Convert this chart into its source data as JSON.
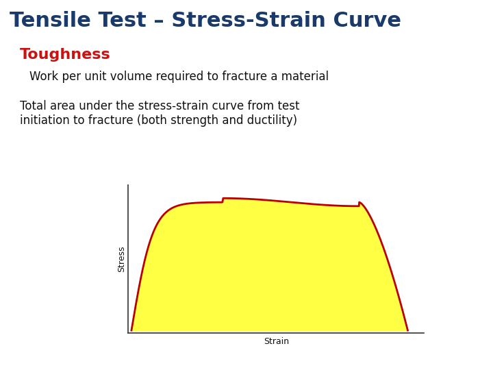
{
  "title": "Tensile Test – Stress-Strain Curve",
  "title_color": "#1a3a6b",
  "title_fontsize": 22,
  "subtitle": "Toughness",
  "subtitle_color": "#cc1111",
  "subtitle_fontsize": 16,
  "line1": "Work per unit volume required to fracture a material",
  "line2": "Total area under the stress-strain curve from test\ninitiation to fracture (both strength and ductility)",
  "text_color": "#111111",
  "text_fontsize": 12,
  "xlabel": "Strain",
  "ylabel": "Stress",
  "axis_label_fontsize": 9,
  "curve_color": "#bb0000",
  "fill_color": "#ffff44",
  "background_color": "#ffffff",
  "curve_linewidth": 2.0
}
